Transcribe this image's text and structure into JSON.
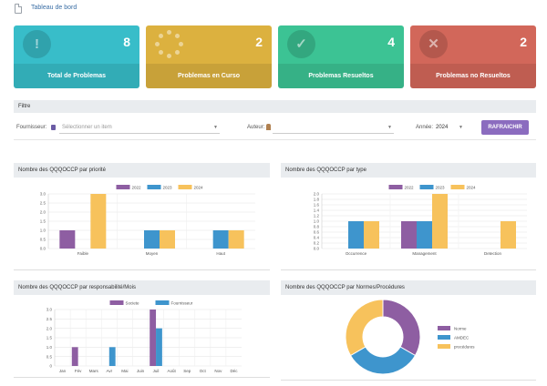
{
  "page": {
    "breadcrumb": "Tableau de bord"
  },
  "cards": [
    {
      "value": "8",
      "label": "Total de Problemas",
      "icon": "exclamation-icon",
      "color": "#38bdc9"
    },
    {
      "value": "2",
      "label": "Problemas en Curso",
      "icon": "spinner-icon",
      "color": "#dcb13f"
    },
    {
      "value": "4",
      "label": "Problemas Resueltos",
      "icon": "check-circle-icon",
      "color": "#3cc394"
    },
    {
      "value": "2",
      "label": "Problemas no Resueltos",
      "icon": "times-circle-icon",
      "color": "#d2675a"
    }
  ],
  "filter": {
    "title": "Filtre",
    "supplier_label": "Fournisseur:",
    "supplier_placeholder": "Sélectionner un item",
    "author_label": "Auteur:",
    "year_label": "Année:",
    "year_value": "2024",
    "refresh_label": "RAFRAICHIR"
  },
  "series_colors": {
    "2022": "#8e5ea2",
    "2023": "#3e95cd",
    "2024": "#f7c25c"
  },
  "panels": {
    "priority": "Nombre des QQQOCCP par priorité",
    "type": "Nombre des QQQOCCP par type",
    "responsibility": "Nombre des QQQOCCP par responsabilité/Mois",
    "norms": "Nombre des QQQOCCP par Normes/Procédures"
  },
  "chart_data": [
    {
      "type": "bar",
      "title": "Nombre des QQQOCCP par priorité",
      "categories": [
        "Faible",
        "Moyen",
        "Haut"
      ],
      "series": [
        {
          "name": "2022",
          "values": [
            1,
            0,
            0
          ]
        },
        {
          "name": "2023",
          "values": [
            0,
            1,
            1
          ]
        },
        {
          "name": "2024",
          "values": [
            3,
            1,
            1
          ]
        }
      ],
      "ylim": [
        0,
        3
      ],
      "yticks": [
        "0.0",
        "0.5",
        "1.0",
        "1.5",
        "2.0",
        "2.5",
        "3.0"
      ],
      "legend": "top",
      "grid": true
    },
    {
      "type": "bar",
      "title": "Nombre des QQQOCCP par type",
      "categories": [
        "Occurrence",
        "Management",
        "Detection"
      ],
      "series": [
        {
          "name": "2022",
          "values": [
            0,
            1,
            0
          ]
        },
        {
          "name": "2023",
          "values": [
            1,
            1,
            0
          ]
        },
        {
          "name": "2024",
          "values": [
            1,
            2,
            1
          ]
        }
      ],
      "ylim": [
        0,
        2
      ],
      "yticks": [
        "0.0",
        "0.2",
        "0.4",
        "0.6",
        "0.8",
        "1.0",
        "1.2",
        "1.4",
        "1.6",
        "1.8",
        "2.0"
      ],
      "legend": "top",
      "grid": true
    },
    {
      "type": "bar",
      "title": "Nombre des QQQOCCP par responsabilité/Mois",
      "categories": [
        "Jan",
        "Fév",
        "Mars",
        "Avr",
        "Mai",
        "Juin",
        "Juil",
        "Août",
        "Sep",
        "Oct",
        "Nov",
        "Déc"
      ],
      "series": [
        {
          "name": "Societe",
          "values": [
            0,
            1,
            0,
            0,
            0,
            0,
            3,
            0,
            0,
            0,
            0,
            0
          ]
        },
        {
          "name": "Fournisseur",
          "values": [
            0,
            0,
            0,
            1,
            0,
            0,
            2,
            0,
            0,
            0,
            0,
            0
          ]
        }
      ],
      "series_colors": [
        "#8e5ea2",
        "#3e95cd"
      ],
      "ylim": [
        0,
        3
      ],
      "yticks": [
        "0",
        "0.5",
        "1.0",
        "1.5",
        "2.0",
        "2.5",
        "3.0"
      ],
      "legend": "top",
      "grid": true
    },
    {
      "type": "pie",
      "title": "Nombre des QQQOCCP par Normes/Procédures",
      "labels": [
        "Norme",
        "AMDEC",
        "procédures"
      ],
      "values": [
        3,
        3,
        3
      ],
      "colors": [
        "#8e5ea2",
        "#3e95cd",
        "#f7c25c"
      ],
      "legend": "right"
    }
  ]
}
